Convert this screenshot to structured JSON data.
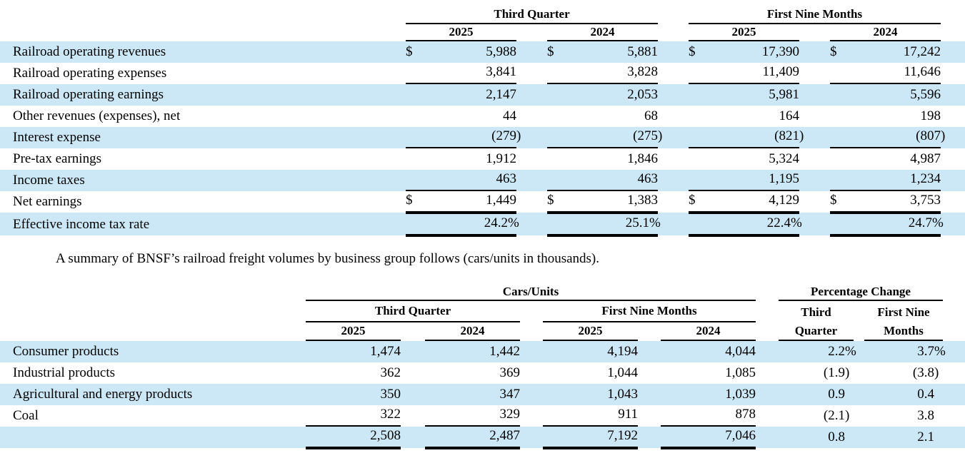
{
  "currency": "$",
  "highlight_color": "#cce8f7",
  "summary_text": "A summary of BNSF’s railroad freight volumes by business group follows (cars/units in thousands).",
  "income_statement": {
    "groups": [
      "Third Quarter",
      "First Nine Months"
    ],
    "years": [
      "2025",
      "2024",
      "2025",
      "2024"
    ],
    "rows": [
      {
        "label": "Railroad operating revenues",
        "values": [
          "5,988",
          "5,881",
          "17,390",
          "17,242"
        ]
      },
      {
        "label": "Railroad operating expenses",
        "values": [
          "3,841",
          "3,828",
          "11,409",
          "11,646"
        ]
      },
      {
        "label": "Railroad operating earnings",
        "values": [
          "2,147",
          "2,053",
          "5,981",
          "5,596"
        ]
      },
      {
        "label": "Other revenues (expenses), net",
        "values": [
          "44",
          "68",
          "164",
          "198"
        ]
      },
      {
        "label": "Interest expense",
        "values": [
          "(279)",
          "(275)",
          "(821)",
          "(807)"
        ]
      },
      {
        "label": "Pre-tax earnings",
        "values": [
          "1,912",
          "1,846",
          "5,324",
          "4,987"
        ]
      },
      {
        "label": "Income taxes",
        "values": [
          "463",
          "463",
          "1,195",
          "1,234"
        ]
      },
      {
        "label": "Net earnings",
        "values": [
          "1,449",
          "1,383",
          "4,129",
          "3,753"
        ]
      },
      {
        "label": "Effective income tax rate",
        "values": [
          "24.2%",
          "25.1%",
          "22.4%",
          "24.7%"
        ]
      }
    ]
  },
  "volumes": {
    "group_units": "Cars/Units",
    "group_pct": "Percentage Change",
    "subgroups": [
      "Third Quarter",
      "First Nine Months"
    ],
    "pct_headers": [
      [
        "Third",
        "Quarter"
      ],
      [
        "First Nine",
        "Months"
      ]
    ],
    "years": [
      "2025",
      "2024",
      "2025",
      "2024"
    ],
    "rows": [
      {
        "label": "Consumer products",
        "values": [
          "1,474",
          "1,442",
          "4,194",
          "4,044"
        ],
        "pct": [
          "2.2%",
          "3.7%"
        ]
      },
      {
        "label": "Industrial products",
        "values": [
          "362",
          "369",
          "1,044",
          "1,085"
        ],
        "pct": [
          "(1.9)",
          "(3.8)"
        ]
      },
      {
        "label": "Agricultural and energy products",
        "values": [
          "350",
          "347",
          "1,043",
          "1,039"
        ],
        "pct": [
          "0.9",
          "0.4"
        ]
      },
      {
        "label": "Coal",
        "values": [
          "322",
          "329",
          "911",
          "878"
        ],
        "pct": [
          "(2.1)",
          "3.8"
        ]
      },
      {
        "label": "",
        "values": [
          "2,508",
          "2,487",
          "7,192",
          "7,046"
        ],
        "pct": [
          "0.8",
          "2.1"
        ]
      }
    ]
  }
}
